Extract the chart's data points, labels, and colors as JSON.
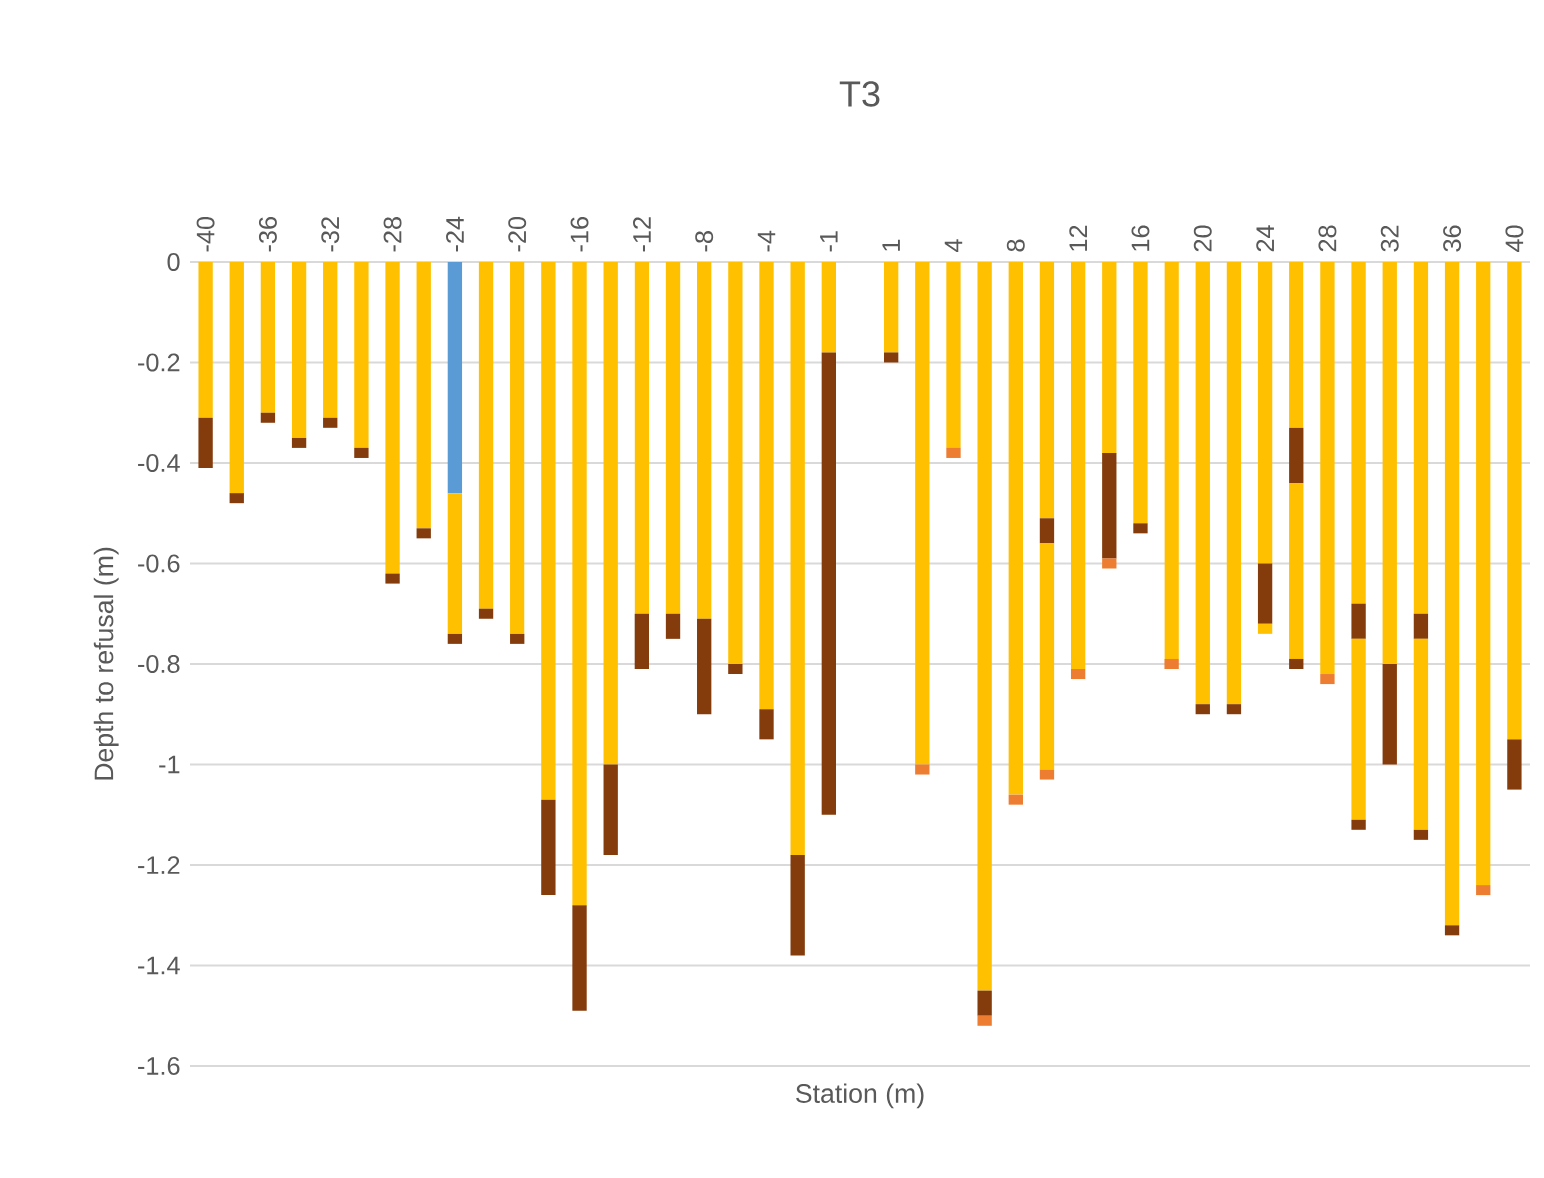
{
  "chart_data": {
    "type": "bar",
    "stacked": true,
    "title": "T3",
    "xlabel": "Station (m)",
    "ylabel": "Depth to refusal (m)",
    "categories": [
      "-40",
      null,
      "-36",
      null,
      "-32",
      null,
      "-28",
      null,
      "-24",
      null,
      "-20",
      null,
      "-16",
      null,
      "-12",
      null,
      "-8",
      null,
      "-4",
      null,
      "-1",
      null,
      "1",
      null,
      "4",
      null,
      "8",
      null,
      "12",
      null,
      "16",
      null,
      "20",
      null,
      "24",
      null,
      "28",
      null,
      "32",
      null,
      "36",
      null,
      "40"
    ],
    "series": [
      {
        "color": "#5b9bd5",
        "values": [
          null,
          null,
          null,
          null,
          null,
          null,
          null,
          null,
          -0.46,
          null,
          null,
          null,
          null,
          null,
          null,
          null,
          null,
          null,
          null,
          null,
          null,
          null,
          null,
          null,
          null,
          null,
          null,
          null,
          null,
          null,
          null,
          null,
          null,
          null,
          null,
          null,
          null,
          null,
          null,
          null,
          null,
          null,
          null
        ]
      },
      {
        "color": "#ffc000",
        "values": [
          -0.31,
          -0.46,
          -0.3,
          -0.35,
          -0.31,
          -0.37,
          -0.62,
          -0.53,
          -0.28,
          -0.69,
          -0.74,
          -1.07,
          -1.28,
          -1.0,
          -0.7,
          -0.7,
          -0.71,
          -0.8,
          -0.89,
          -1.18,
          -0.18,
          null,
          -0.18,
          -1.0,
          -0.37,
          -1.45,
          -1.06,
          -0.51,
          -0.81,
          -0.38,
          -0.52,
          -0.79,
          -0.88,
          -0.88,
          -0.6,
          -0.33,
          -0.82,
          -0.68,
          -0.8,
          -0.7,
          -1.32,
          -1.24,
          -0.95
        ]
      },
      {
        "color": "#843c0c",
        "values": [
          -0.1,
          -0.02,
          -0.02,
          -0.02,
          -0.02,
          -0.02,
          -0.02,
          -0.02,
          -0.02,
          -0.02,
          -0.02,
          -0.19,
          -0.21,
          -0.18,
          -0.11,
          -0.05,
          -0.19,
          -0.02,
          -0.06,
          -0.2,
          -0.92,
          null,
          -0.02,
          null,
          null,
          -0.05,
          null,
          -0.05,
          null,
          -0.21,
          -0.02,
          null,
          -0.02,
          -0.02,
          -0.12,
          -0.11,
          null,
          -0.07,
          -0.2,
          -0.05,
          -0.02,
          null,
          -0.1
        ]
      },
      {
        "color": "#ffc000",
        "values": [
          null,
          null,
          null,
          null,
          null,
          null,
          null,
          null,
          null,
          null,
          null,
          null,
          null,
          null,
          null,
          null,
          null,
          null,
          null,
          null,
          null,
          null,
          null,
          null,
          null,
          null,
          null,
          -0.45,
          null,
          null,
          null,
          null,
          null,
          null,
          -0.02,
          -0.35,
          null,
          -0.36,
          null,
          -0.38,
          null,
          null,
          null
        ]
      },
      {
        "color": "#843c0c",
        "values": [
          null,
          null,
          null,
          null,
          null,
          null,
          null,
          null,
          null,
          null,
          null,
          null,
          null,
          null,
          null,
          null,
          null,
          null,
          null,
          null,
          null,
          null,
          null,
          null,
          null,
          null,
          null,
          null,
          null,
          null,
          null,
          null,
          null,
          null,
          null,
          -0.02,
          null,
          -0.02,
          null,
          -0.02,
          null,
          null,
          null
        ]
      },
      {
        "color": "#ed7d31",
        "values": [
          null,
          null,
          null,
          null,
          null,
          null,
          null,
          null,
          null,
          null,
          null,
          null,
          null,
          null,
          null,
          null,
          null,
          null,
          null,
          null,
          null,
          null,
          null,
          -0.02,
          -0.02,
          -0.02,
          -0.02,
          -0.02,
          -0.02,
          -0.02,
          null,
          -0.02,
          null,
          null,
          null,
          null,
          -0.02,
          null,
          null,
          null,
          null,
          -0.02,
          null
        ]
      }
    ],
    "ylim": [
      -1.6,
      0
    ],
    "yticks": [
      0,
      -0.2,
      -0.4,
      -0.6,
      -0.8,
      -1,
      -1.2,
      -1.4,
      -1.6
    ],
    "grid": "y"
  }
}
